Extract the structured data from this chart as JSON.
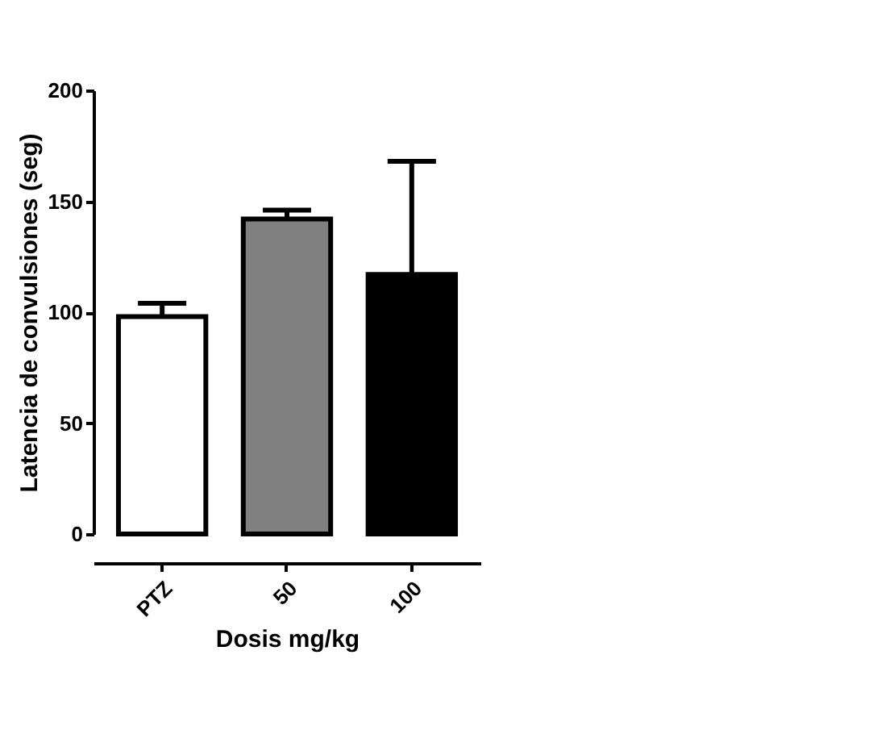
{
  "chart_data": {
    "type": "bar",
    "categories": [
      "PTZ",
      "50",
      "100"
    ],
    "values": [
      98,
      142,
      117
    ],
    "colors": [
      "#ffffff",
      "#808080",
      "#000000"
    ],
    "errors": [
      [
        98,
        104
      ],
      [
        142,
        146
      ],
      [
        117,
        168
      ]
    ],
    "xlabel": "Dosis mg/kg",
    "ylabel": "Latencia de convulsiones (seg)",
    "ylim": [
      0,
      200
    ],
    "yticks": [
      0,
      50,
      100,
      150,
      200
    ],
    "grid": false,
    "legend": false
  }
}
